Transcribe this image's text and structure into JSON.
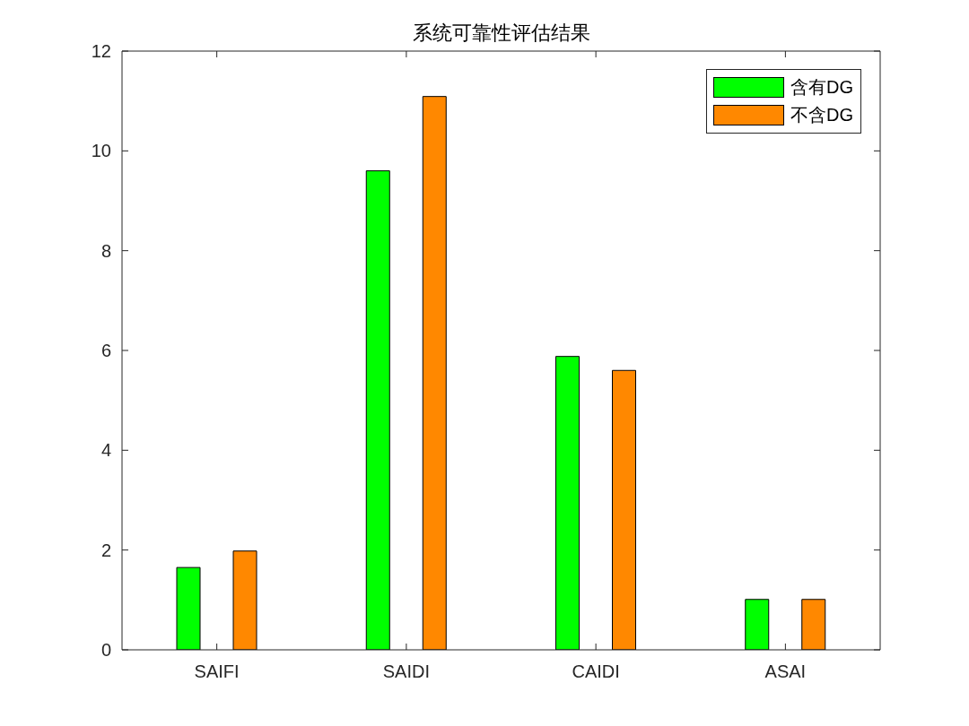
{
  "chart_data": {
    "type": "bar",
    "title": "系统可靠性评估结果",
    "categories": [
      "SAIFI",
      "SAIDI",
      "CAIDI",
      "ASAI"
    ],
    "series": [
      {
        "name": "含有DG",
        "color": "#00ff00",
        "values": [
          1.65,
          9.6,
          5.88,
          1.01
        ]
      },
      {
        "name": "不含DG",
        "color": "#ff8800",
        "values": [
          1.98,
          11.09,
          5.6,
          1.01
        ]
      }
    ],
    "ylim": [
      0,
      12
    ],
    "yticks": [
      0,
      2,
      4,
      6,
      8,
      10,
      12
    ],
    "legend": "top right"
  }
}
